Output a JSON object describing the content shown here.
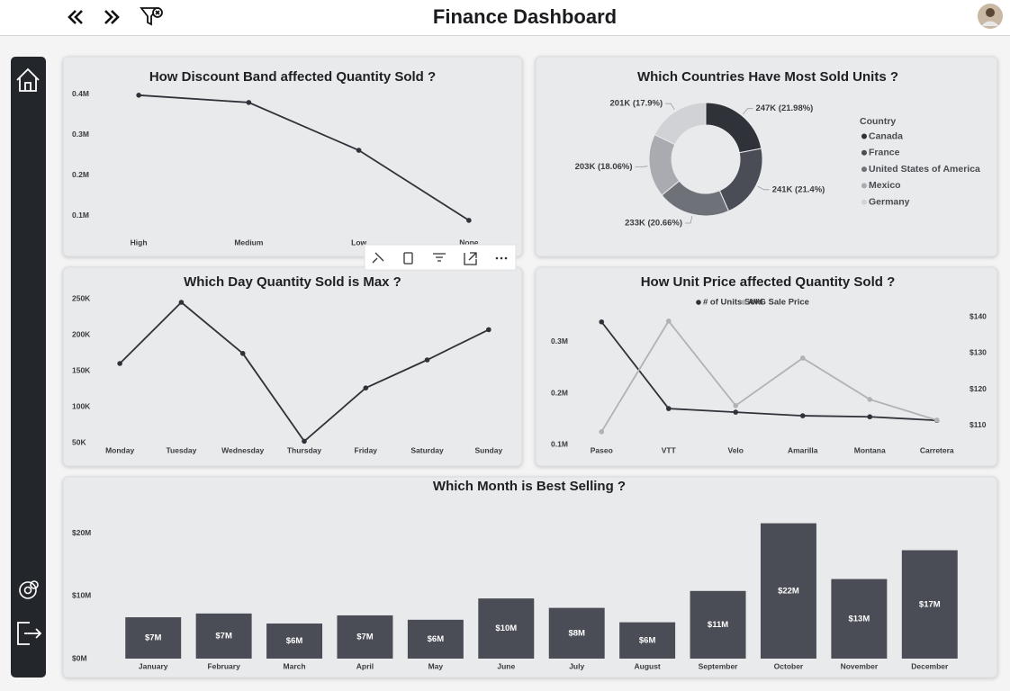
{
  "header": {
    "title": "Finance Dashboard"
  },
  "chart_data": [
    {
      "type": "line",
      "title": "How Discount Band affected Quantity Sold ?",
      "categories": [
        "High",
        "Medium",
        "Low",
        "None"
      ],
      "values": [
        398000,
        380000,
        262000,
        89000
      ],
      "color": "#2f3238",
      "ylim": [
        51000,
        422000
      ],
      "yticks": [
        {
          "value": 100000,
          "label": "0.1M"
        },
        {
          "value": 200000,
          "label": "0.2M"
        },
        {
          "value": 300000,
          "label": "0.3M"
        },
        {
          "value": 400000,
          "label": "0.4M"
        }
      ]
    },
    {
      "type": "donut",
      "title": "Which Countries Have Most Sold Units ?",
      "legend_title": "Country",
      "categories": [
        "Canada",
        "France",
        "United States of America",
        "Mexico",
        "Germany"
      ],
      "values": [
        247000,
        241000,
        233000,
        203000,
        201000
      ],
      "value_labels": [
        "247K (21.98%)",
        "241K (21.4%)",
        "233K (20.66%)",
        "203K (18.06%)",
        "201K (17.9%)"
      ],
      "colors": [
        "#2f3238",
        "#4a4d55",
        "#6f7178",
        "#a9abb0",
        "#d0d2d5"
      ]
    },
    {
      "type": "line",
      "title": "Which Day Quantity Sold is Max ?",
      "categories": [
        "Monday",
        "Tuesday",
        "Wednesday",
        "Thursday",
        "Friday",
        "Saturday",
        "Sunday"
      ],
      "values": [
        160000,
        245000,
        174000,
        52000,
        126000,
        165000,
        207000
      ],
      "color": "#2f3238",
      "ylim": [
        46250,
        258750
      ],
      "yticks": [
        {
          "value": 50000,
          "label": "50K"
        },
        {
          "value": 100000,
          "label": "100K"
        },
        {
          "value": 150000,
          "label": "150K"
        },
        {
          "value": 200000,
          "label": "200K"
        },
        {
          "value": 250000,
          "label": "250K"
        }
      ]
    },
    {
      "type": "line",
      "title": "How Unit Price affected Quantity Sold ?",
      "categories": [
        "Paseo",
        "VTT",
        "Velo",
        "Amarilla",
        "Montana",
        "Carretera"
      ],
      "series": [
        {
          "name": "# of Units Sold",
          "color": "#2f3238",
          "values": [
            339000,
            170000,
            163000,
            156000,
            154000,
            147000
          ]
        },
        {
          "name": "AVG Sale Price",
          "color": "#b0b2b5",
          "axis": "y2",
          "values": [
            108.3,
            138.8,
            115.5,
            128.6,
            117.2,
            111.5
          ]
        }
      ],
      "ylim": [
        89500,
        352600
      ],
      "yticks": [
        {
          "value": 100000,
          "label": "0.1M"
        },
        {
          "value": 200000,
          "label": "0.2M"
        },
        {
          "value": 300000,
          "label": "0.3M"
        }
      ],
      "y2lim": [
        103.3,
        140.5
      ],
      "y2ticks": [
        {
          "value": 110,
          "label": "$110"
        },
        {
          "value": 120,
          "label": "$120"
        },
        {
          "value": 130,
          "label": "$130"
        },
        {
          "value": 140,
          "label": "$140"
        }
      ]
    },
    {
      "type": "bar",
      "title": "Which Month is Best Selling ?",
      "categories": [
        "January",
        "February",
        "March",
        "April",
        "May",
        "June",
        "July",
        "August",
        "September",
        "October",
        "November",
        "December"
      ],
      "values": [
        6600000,
        7200000,
        5600000,
        6900000,
        6200000,
        9600000,
        8100000,
        5800000,
        10800000,
        21600000,
        12700000,
        17300000
      ],
      "value_labels": [
        "$7M",
        "$7M",
        "$6M",
        "$7M",
        "$6M",
        "$10M",
        "$8M",
        "$6M",
        "$11M",
        "$22M",
        "$13M",
        "$17M"
      ],
      "color": "#4a4d55",
      "ylim": [
        0,
        24700000
      ],
      "yticks": [
        {
          "value": 0,
          "label": "$0M"
        },
        {
          "value": 10000000,
          "label": "$10M"
        },
        {
          "value": 20000000,
          "label": "$20M"
        }
      ]
    }
  ]
}
